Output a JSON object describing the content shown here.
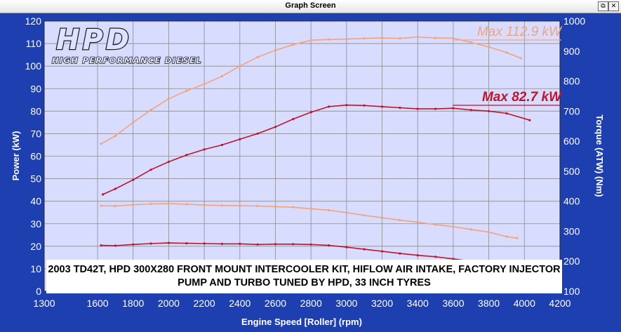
{
  "window": {
    "title": "Graph Screen",
    "restore_glyph": "⧉",
    "close_glyph": "✕"
  },
  "logo": {
    "brand": "HPD",
    "tagline": "HIGH PERFORMANCE DIESEL"
  },
  "note": "2003 TD42T, HPD 300X280 FRONT MOUNT INTERCOOLER KIT, HIFLOW AIR INTAKE, FACTORY INJECTOR PUMP AND TURBO TUNED BY HPD, 33 INCH TYRES",
  "colors": {
    "plot_background": "#d8dcff",
    "frame": "#1d3fb0",
    "grid": "#8d8d8d",
    "tuned": "#f4a27c",
    "stock": "#c0142c"
  },
  "chart_data": {
    "type": "line",
    "xlabel": "Engine Speed [Roller] (rpm)",
    "ylabel": "Power (kW)",
    "y2label": "Torque (ATW) (Nm)",
    "xlim": [
      1300,
      4200
    ],
    "ylim": [
      0,
      120
    ],
    "y2lim": [
      100,
      1000
    ],
    "xticks": [
      "1300",
      "1600",
      "1800",
      "2000",
      "2200",
      "2400",
      "2600",
      "2800",
      "3000",
      "3200",
      "3400",
      "3600",
      "3800",
      "4000",
      "4200"
    ],
    "yticks": [
      "0",
      "10",
      "20",
      "30",
      "40",
      "50",
      "60",
      "70",
      "80",
      "90",
      "100",
      "110",
      "120"
    ],
    "y2ticks": [
      "100",
      "200",
      "300",
      "400",
      "500",
      "600",
      "700",
      "800",
      "900",
      "1000"
    ],
    "grid": true,
    "annotations": [
      {
        "text": "Max 112.9 kW",
        "series": "tuned"
      },
      {
        "text": "Max 82.7 kW",
        "series": "stock"
      }
    ],
    "series": [
      {
        "key": "tuned",
        "kind": "power",
        "axis": "left",
        "x": [
          1620,
          1700,
          1800,
          1900,
          2000,
          2100,
          2200,
          2300,
          2400,
          2500,
          2600,
          2700,
          2800,
          2900,
          3000,
          3100,
          3200,
          3300,
          3400,
          3500,
          3600,
          3700,
          3800,
          3900,
          3980
        ],
        "values": [
          65.5,
          69,
          75,
          80.5,
          85.5,
          89,
          92,
          95.5,
          100,
          104,
          107,
          109.5,
          111.5,
          111.8,
          112,
          112.3,
          112.5,
          112.3,
          112.9,
          112.5,
          112.4,
          110.5,
          108.5,
          106,
          103.5
        ]
      },
      {
        "key": "stock",
        "kind": "power",
        "axis": "left",
        "x": [
          1630,
          1700,
          1800,
          1900,
          2000,
          2100,
          2200,
          2300,
          2400,
          2500,
          2600,
          2700,
          2800,
          2900,
          3000,
          3100,
          3200,
          3300,
          3400,
          3500,
          3600,
          3700,
          3800,
          3900,
          4030
        ],
        "values": [
          43,
          45.5,
          49.5,
          54,
          57.5,
          60.5,
          63,
          65,
          67.5,
          70,
          73,
          76.5,
          79.5,
          82,
          82.7,
          82.5,
          82,
          81.5,
          81,
          81,
          81.3,
          80.5,
          80,
          79,
          76
        ]
      },
      {
        "key": "tuned",
        "kind": "torque",
        "axis": "right",
        "x": [
          1620,
          1700,
          1800,
          1900,
          2000,
          2100,
          2200,
          2300,
          2400,
          2500,
          2600,
          2700,
          2800,
          2900,
          3000,
          3100,
          3200,
          3300,
          3400,
          3500,
          3600,
          3700,
          3800,
          3900,
          3960
        ],
        "values": [
          385,
          384,
          388,
          391,
          392,
          390,
          387,
          386,
          385,
          384,
          382,
          380,
          375,
          370,
          362,
          353,
          345,
          337,
          330,
          322,
          315,
          306,
          297,
          282,
          277
        ]
      },
      {
        "key": "stock",
        "kind": "torque",
        "axis": "right",
        "x": [
          1620,
          1700,
          1800,
          1900,
          2000,
          2100,
          2200,
          2300,
          2400,
          2500,
          2600,
          2700,
          2800,
          2900,
          3000,
          3100,
          3200,
          3300,
          3400,
          3500,
          3600,
          3700
        ],
        "values": [
          253,
          252,
          256,
          259,
          261,
          260,
          259,
          258,
          258,
          256,
          257,
          257,
          256,
          253,
          247,
          240,
          233,
          226,
          220,
          215,
          208,
          200
        ]
      }
    ]
  }
}
